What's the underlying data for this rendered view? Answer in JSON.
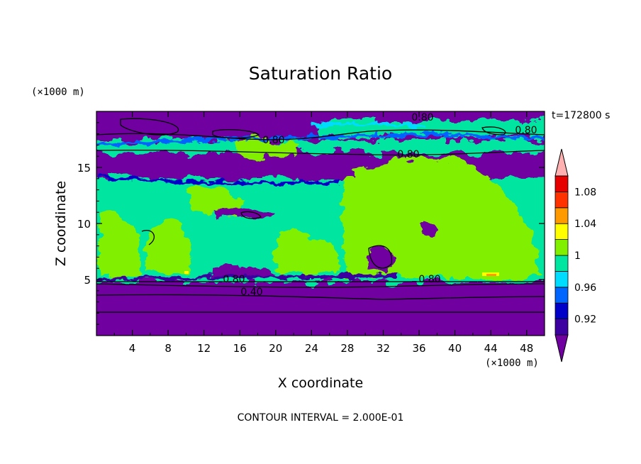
{
  "chart_data": {
    "type": "heatmap",
    "title": "Saturation Ratio",
    "xlabel": "X coordinate",
    "ylabel": "Z coordinate",
    "x_unit": "(×1000 m)",
    "y_unit": "(×1000 m)",
    "time_label": "t=172800 s",
    "footer": "CONTOUR INTERVAL = 2.000E-01",
    "xlim": [
      0,
      50
    ],
    "ylim": [
      0,
      20
    ],
    "x_ticks": [
      "4",
      "8",
      "12",
      "16",
      "20",
      "24",
      "28",
      "32",
      "36",
      "40",
      "44",
      "48"
    ],
    "y_ticks": [
      "5",
      "10",
      "15"
    ],
    "colorbar": {
      "levels": [
        0.9,
        0.92,
        0.94,
        0.96,
        0.98,
        1.0,
        1.02,
        1.04,
        1.06,
        1.08,
        1.1
      ],
      "labels": [
        "0.92",
        "0.96",
        "1",
        "1.04",
        "1.08"
      ],
      "colors": [
        "#7000a0",
        "#3c00a0",
        "#0000c8",
        "#0064ff",
        "#00dcff",
        "#00e6a0",
        "#80f000",
        "#ffff00",
        "#ff9b00",
        "#ff3200",
        "#e60000",
        "#ffb0b0"
      ]
    },
    "contour_labels": [
      "0.80",
      "0.80",
      "0.80",
      "0.80",
      "0.80",
      "0.80",
      "0.40"
    ],
    "grid": false,
    "legend": "right colorbar"
  }
}
